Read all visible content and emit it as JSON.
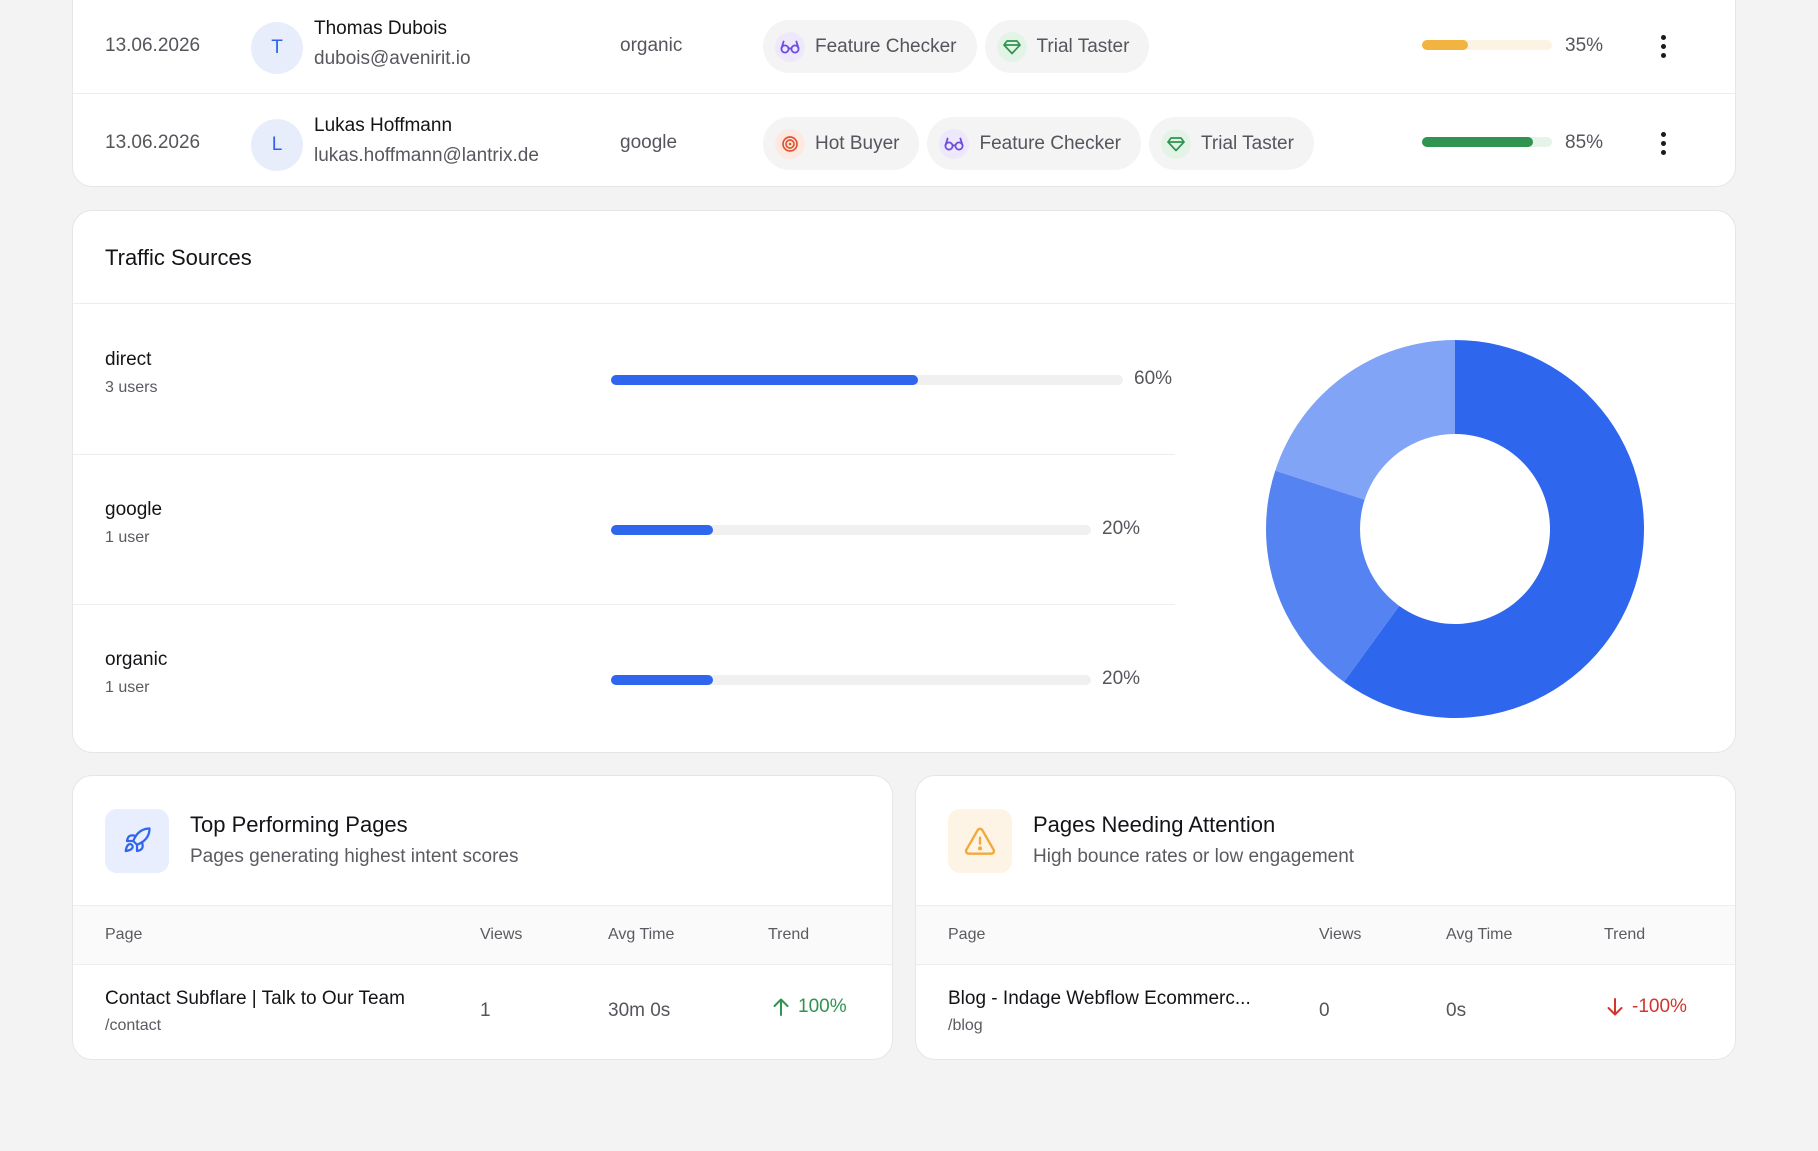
{
  "visitors": {
    "rows": [
      {
        "date": "13.06.2026",
        "initial": "T",
        "name": "Thomas Dubois",
        "email": "dubois@avenirit.io",
        "source": "organic",
        "tags": [
          "Feature Checker",
          "Trial Taster"
        ],
        "score": 0.35,
        "score_label": "35%",
        "score_color": "#f2b441",
        "score_track": "#fdf3e3"
      },
      {
        "date": "13.06.2026",
        "initial": "L",
        "name": "Lukas Hoffmann",
        "email": "lukas.hoffmann@lantrix.de",
        "source": "google",
        "tags": [
          "Hot Buyer",
          "Feature Checker",
          "Trial Taster"
        ],
        "score": 0.85,
        "score_label": "85%",
        "score_color": "#2e9450",
        "score_track": "#e5f3e9"
      }
    ]
  },
  "traffic": {
    "title": "Traffic Sources",
    "sources": [
      {
        "name": "direct",
        "users": "3 users",
        "share": 0.6,
        "pct_label": "60%",
        "color": "#2f66ee"
      },
      {
        "name": "google",
        "users": "1 user",
        "share": 0.2,
        "pct_label": "20%",
        "color": "#5584f2"
      },
      {
        "name": "organic",
        "users": "1 user",
        "share": 0.2,
        "pct_label": "20%",
        "color": "#81a4f7"
      }
    ]
  },
  "top_pages": {
    "title": "Top Performing Pages",
    "subtitle": "Pages generating highest intent scores",
    "icon": "rocket-icon",
    "columns": {
      "page": "Page",
      "views": "Views",
      "avg_time": "Avg Time",
      "trend": "Trend"
    },
    "rows": [
      {
        "title": "Contact Subflare | Talk to Our Team",
        "url": "/contact",
        "views": "1",
        "avg_time": "30m 0s",
        "trend": "100%",
        "trend_dir": "up"
      }
    ]
  },
  "attention_pages": {
    "title": "Pages Needing Attention",
    "subtitle": "High bounce rates or low engagement",
    "icon": "warning-icon",
    "columns": {
      "page": "Page",
      "views": "Views",
      "avg_time": "Avg Time",
      "trend": "Trend"
    },
    "rows": [
      {
        "title": "Blog - Indage Webflow Ecommerc...",
        "url": "/blog",
        "views": "0",
        "avg_time": "0s",
        "trend": "-100%",
        "trend_dir": "down"
      }
    ]
  },
  "colors": {
    "accent": "#2f66ee",
    "trend_up": "#2e9450",
    "trend_down": "#d1352c",
    "warning": "#f2a93b"
  }
}
